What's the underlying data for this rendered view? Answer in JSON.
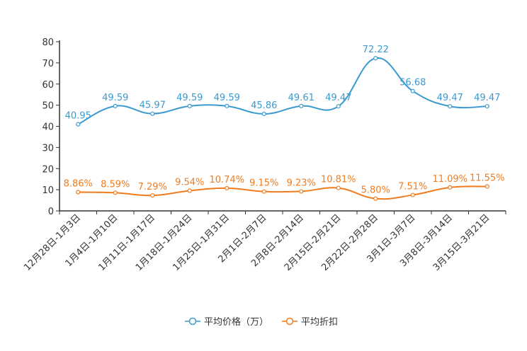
{
  "chart_data": {
    "type": "line",
    "title": "",
    "xlabel": "",
    "ylabel": "",
    "ylim": [
      0,
      80
    ],
    "yticks": [
      0,
      10,
      20,
      30,
      40,
      50,
      60,
      70,
      80
    ],
    "categories": [
      "12月28日-1月3日",
      "1月4日-1月10日",
      "1月11日-1月17日",
      "1月18日-1月24日",
      "1月25日-1月31日",
      "2月1日-2月7日",
      "2月8日-2月14日",
      "2月15日-2月21日",
      "2月22日-2月28日",
      "3月1日-3月7日",
      "3月8日-3月14日",
      "3月15日-3月21日"
    ],
    "series": [
      {
        "name": "平均价格（万）",
        "color": "#3a9ad0",
        "values": [
          40.95,
          49.59,
          45.97,
          49.59,
          49.59,
          45.86,
          49.61,
          49.47,
          72.22,
          56.68,
          49.47,
          49.47
        ],
        "labels": [
          "40.95",
          "49.59",
          "45.97",
          "49.59",
          "49.59",
          "45.86",
          "49.61",
          "49.47",
          "72.22",
          "56.68",
          "49.47",
          "49.47"
        ]
      },
      {
        "name": "平均折扣",
        "color": "#f07c1e",
        "values": [
          8.86,
          8.59,
          7.29,
          9.54,
          10.74,
          9.15,
          9.23,
          10.81,
          5.8,
          7.51,
          11.09,
          11.55
        ],
        "labels": [
          "8.86%",
          "8.59%",
          "7.29%",
          "9.54%",
          "10.74%",
          "9.15%",
          "9.23%",
          "10.81%",
          "5.80%",
          "7.51%",
          "11.09%",
          "11.55%"
        ]
      }
    ],
    "legend_position": "bottom"
  }
}
